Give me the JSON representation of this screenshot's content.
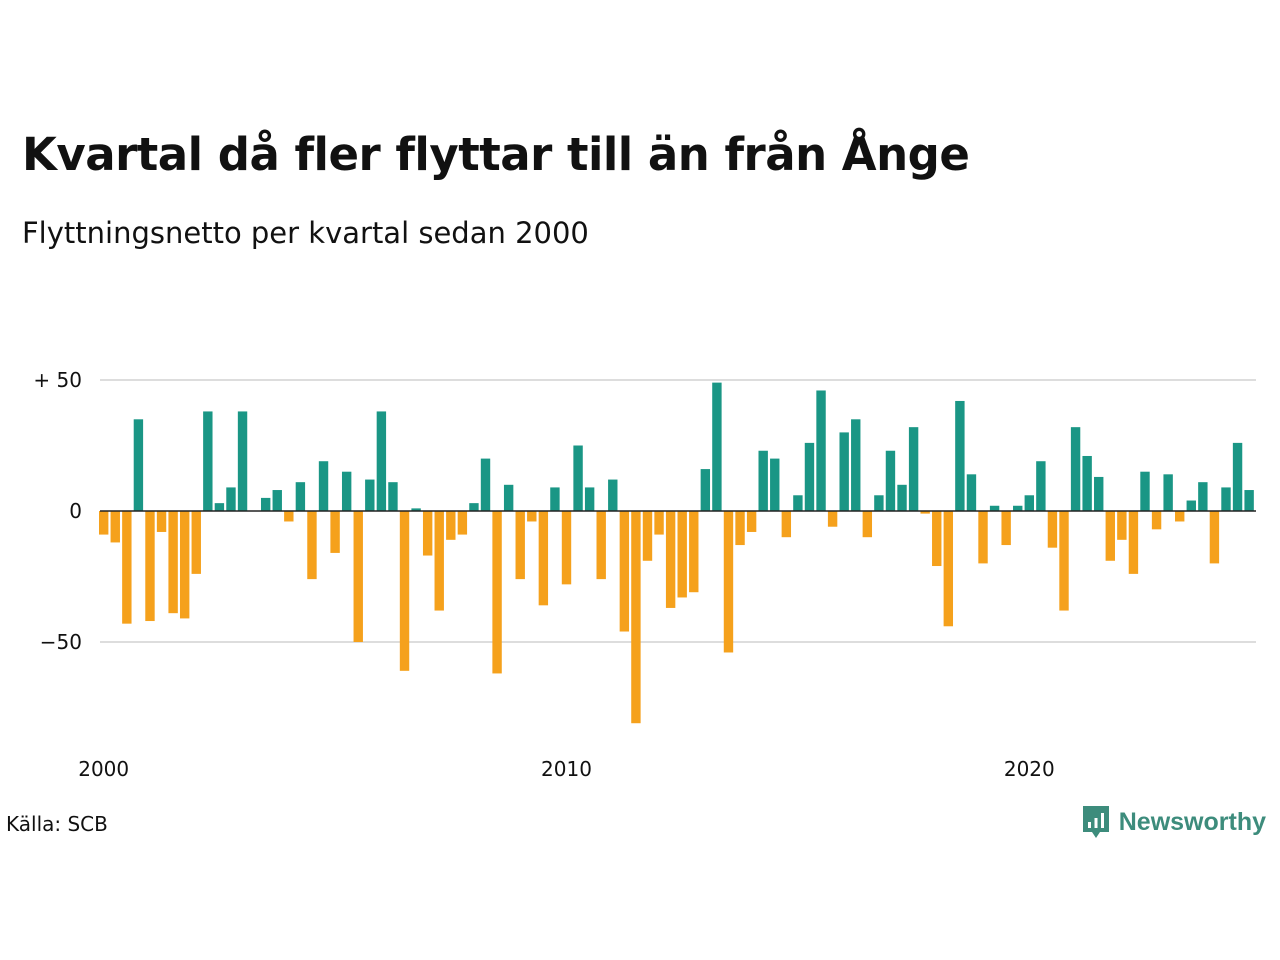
{
  "header": {
    "title": "Kvartal då fler flyttar till än från Ånge",
    "subtitle": "Flyttningsnetto per kvartal sedan 2000"
  },
  "footer": {
    "source": "Källa: SCB",
    "brand": "Newsworthy"
  },
  "colors": {
    "positive": "#1a9685",
    "negative": "#f5a11c",
    "gridline": "#dddddd",
    "zeroline": "#222222",
    "brand": "#3d8c7c"
  },
  "icons": {
    "brand_logo": "newsworthy-logo-icon"
  },
  "chart_data": {
    "type": "bar",
    "title": "Kvartal då fler flyttar till än från Ånge",
    "subtitle": "Flyttningsnetto per kvartal sedan 2000",
    "xlabel": "",
    "ylabel": "",
    "start": {
      "year": 2000,
      "quarter": 1
    },
    "ylim": [
      -85,
      50
    ],
    "yticks": [
      50,
      0,
      -50
    ],
    "ytick_labels": [
      "+ 50",
      "0",
      "−50"
    ],
    "xticks": [
      "2000",
      "2010",
      "2020"
    ],
    "grid": true,
    "values": [
      -9,
      -12,
      -43,
      35,
      -42,
      -8,
      -39,
      -41,
      -24,
      38,
      3,
      9,
      38,
      0,
      5,
      8,
      -4,
      11,
      -26,
      19,
      -16,
      15,
      -50,
      12,
      38,
      11,
      -61,
      1,
      -17,
      -38,
      -11,
      -9,
      3,
      20,
      -62,
      10,
      -26,
      -4,
      -36,
      9,
      -28,
      25,
      9,
      -26,
      12,
      -46,
      -81,
      -19,
      -9,
      -37,
      -33,
      -31,
      16,
      49,
      -54,
      -13,
      -8,
      23,
      20,
      -10,
      6,
      26,
      46,
      -6,
      30,
      35,
      -10,
      6,
      23,
      10,
      32,
      -1,
      -21,
      -44,
      42,
      14,
      -20,
      2,
      -13,
      2,
      6,
      19,
      -14,
      -38,
      32,
      21,
      13,
      -19,
      -11,
      -24,
      15,
      -7,
      14,
      -4,
      4,
      11,
      -20,
      9,
      26,
      8
    ]
  }
}
